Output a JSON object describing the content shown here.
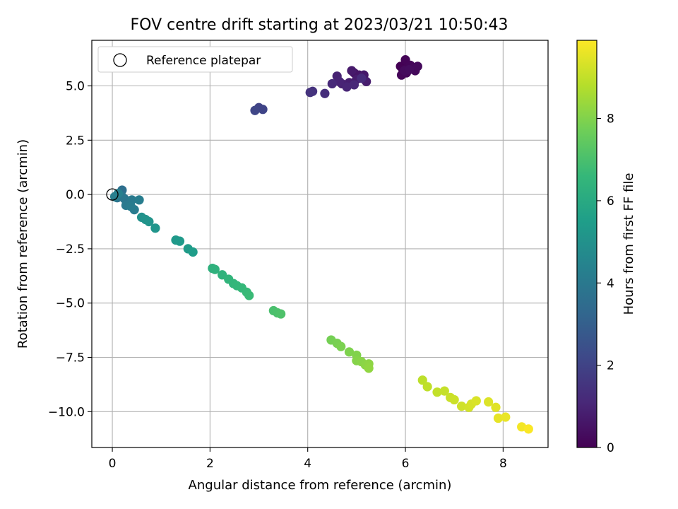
{
  "chart_data": {
    "type": "scatter",
    "title": "FOV centre drift starting at 2023/03/21 10:50:43",
    "xlabel": "Angular distance from reference (arcmin)",
    "ylabel": "Rotation from reference (arcmin)",
    "xlim": [
      -0.42,
      8.92
    ],
    "ylim": [
      -11.65,
      7.1
    ],
    "xticks": [
      0,
      2,
      4,
      6,
      8
    ],
    "xtick_labels": [
      "0",
      "2",
      "4",
      "6",
      "8"
    ],
    "yticks": [
      -10,
      -7.5,
      -5,
      -2.5,
      0,
      2.5,
      5
    ],
    "ytick_labels": [
      "−10.0",
      "−7.5",
      "−5.0",
      "−2.5",
      "0.0",
      "2.5",
      "5.0"
    ],
    "grid": true,
    "legend": {
      "placement": "top-left",
      "entries": [
        "Reference platepar"
      ]
    },
    "reference_point": {
      "x": 0,
      "y": 0
    },
    "colorbar": {
      "label": "Hours from first FF file",
      "colormap": "viridis",
      "range": [
        0,
        9.9
      ],
      "ticks": [
        0,
        2,
        4,
        6,
        8
      ],
      "tick_labels": [
        "0",
        "2",
        "4",
        "6",
        "8"
      ]
    },
    "colormap_stops": [
      "#440154",
      "#482878",
      "#3e4989",
      "#31688e",
      "#26828e",
      "#1f9e89",
      "#35b779",
      "#6ece58",
      "#b5de2b",
      "#fde725"
    ],
    "points": [
      {
        "x": 5.9,
        "y": 5.9,
        "h": 0.0
      },
      {
        "x": 5.95,
        "y": 5.75,
        "h": 0.05
      },
      {
        "x": 6.0,
        "y": 6.2,
        "h": 0.08
      },
      {
        "x": 6.05,
        "y": 5.85,
        "h": 0.1
      },
      {
        "x": 6.1,
        "y": 5.95,
        "h": 0.12
      },
      {
        "x": 5.92,
        "y": 5.5,
        "h": 0.15
      },
      {
        "x": 6.02,
        "y": 5.6,
        "h": 0.18
      },
      {
        "x": 6.15,
        "y": 5.8,
        "h": 0.2
      },
      {
        "x": 6.2,
        "y": 5.7,
        "h": 0.22
      },
      {
        "x": 6.25,
        "y": 5.9,
        "h": 0.25
      },
      {
        "x": 5.98,
        "y": 5.7,
        "h": 0.28
      },
      {
        "x": 6.08,
        "y": 5.75,
        "h": 0.3
      },
      {
        "x": 4.95,
        "y": 5.6,
        "h": 0.5
      },
      {
        "x": 5.05,
        "y": 5.5,
        "h": 0.55
      },
      {
        "x": 5.1,
        "y": 5.45,
        "h": 0.6
      },
      {
        "x": 5.15,
        "y": 5.5,
        "h": 0.65
      },
      {
        "x": 4.9,
        "y": 5.7,
        "h": 0.7
      },
      {
        "x": 5.0,
        "y": 5.3,
        "h": 0.75
      },
      {
        "x": 5.2,
        "y": 5.2,
        "h": 0.8
      },
      {
        "x": 4.85,
        "y": 5.15,
        "h": 0.85
      },
      {
        "x": 4.7,
        "y": 5.1,
        "h": 0.9
      },
      {
        "x": 4.6,
        "y": 5.45,
        "h": 0.95
      },
      {
        "x": 4.65,
        "y": 5.2,
        "h": 1.0
      },
      {
        "x": 4.8,
        "y": 4.95,
        "h": 1.05
      },
      {
        "x": 4.95,
        "y": 5.05,
        "h": 1.1
      },
      {
        "x": 4.5,
        "y": 5.1,
        "h": 1.15
      },
      {
        "x": 5.1,
        "y": 5.35,
        "h": 1.2
      },
      {
        "x": 4.35,
        "y": 4.65,
        "h": 1.3
      },
      {
        "x": 4.1,
        "y": 4.75,
        "h": 1.4
      },
      {
        "x": 4.05,
        "y": 4.7,
        "h": 1.45
      },
      {
        "x": 3.0,
        "y": 4.0,
        "h": 2.0
      },
      {
        "x": 3.08,
        "y": 3.92,
        "h": 2.05
      },
      {
        "x": 2.92,
        "y": 3.87,
        "h": 2.1
      },
      {
        "x": 0.2,
        "y": 0.2,
        "h": 3.6
      },
      {
        "x": 0.15,
        "y": -0.05,
        "h": 3.7
      },
      {
        "x": 0.1,
        "y": -0.15,
        "h": 3.75
      },
      {
        "x": 0.25,
        "y": -0.2,
        "h": 3.8
      },
      {
        "x": 0.3,
        "y": -0.35,
        "h": 3.85
      },
      {
        "x": 0.35,
        "y": -0.3,
        "h": 3.9
      },
      {
        "x": 0.2,
        "y": -0.1,
        "h": 3.95
      },
      {
        "x": 0.28,
        "y": -0.5,
        "h": 4.0
      },
      {
        "x": 0.4,
        "y": -0.25,
        "h": 4.05
      },
      {
        "x": 0.45,
        "y": -0.7,
        "h": 4.1
      },
      {
        "x": 0.38,
        "y": -0.55,
        "h": 4.15
      },
      {
        "x": 0.55,
        "y": -0.25,
        "h": 4.2
      },
      {
        "x": 0.05,
        "y": -0.1,
        "h": 4.25
      },
      {
        "x": 0.12,
        "y": 0.05,
        "h": 4.3
      },
      {
        "x": 0.6,
        "y": -1.05,
        "h": 5.0
      },
      {
        "x": 0.68,
        "y": -1.15,
        "h": 5.05
      },
      {
        "x": 0.75,
        "y": -1.25,
        "h": 5.1
      },
      {
        "x": 0.88,
        "y": -1.55,
        "h": 5.15
      },
      {
        "x": 1.3,
        "y": -2.1,
        "h": 5.3
      },
      {
        "x": 1.38,
        "y": -2.15,
        "h": 5.35
      },
      {
        "x": 1.55,
        "y": -2.5,
        "h": 5.4
      },
      {
        "x": 1.65,
        "y": -2.65,
        "h": 5.45
      },
      {
        "x": 2.05,
        "y": -3.4,
        "h": 6.3
      },
      {
        "x": 2.1,
        "y": -3.45,
        "h": 6.35
      },
      {
        "x": 2.25,
        "y": -3.7,
        "h": 6.4
      },
      {
        "x": 2.38,
        "y": -3.9,
        "h": 6.45
      },
      {
        "x": 2.48,
        "y": -4.1,
        "h": 6.5
      },
      {
        "x": 2.55,
        "y": -4.2,
        "h": 6.55
      },
      {
        "x": 2.65,
        "y": -4.3,
        "h": 6.6
      },
      {
        "x": 2.75,
        "y": -4.5,
        "h": 6.65
      },
      {
        "x": 2.8,
        "y": -4.65,
        "h": 6.7
      },
      {
        "x": 3.3,
        "y": -5.35,
        "h": 7.0
      },
      {
        "x": 3.38,
        "y": -5.45,
        "h": 7.05
      },
      {
        "x": 3.45,
        "y": -5.5,
        "h": 7.1
      },
      {
        "x": 4.48,
        "y": -6.7,
        "h": 7.8
      },
      {
        "x": 4.6,
        "y": -6.85,
        "h": 7.85
      },
      {
        "x": 4.68,
        "y": -7.0,
        "h": 7.9
      },
      {
        "x": 4.85,
        "y": -7.25,
        "h": 7.95
      },
      {
        "x": 5.0,
        "y": -7.4,
        "h": 8.0
      },
      {
        "x": 5.0,
        "y": -7.65,
        "h": 8.05
      },
      {
        "x": 5.1,
        "y": -7.7,
        "h": 8.1
      },
      {
        "x": 5.18,
        "y": -7.85,
        "h": 8.15
      },
      {
        "x": 5.25,
        "y": -7.8,
        "h": 8.2
      },
      {
        "x": 5.25,
        "y": -8.0,
        "h": 8.25
      },
      {
        "x": 6.35,
        "y": -8.55,
        "h": 8.9
      },
      {
        "x": 6.45,
        "y": -8.85,
        "h": 8.95
      },
      {
        "x": 6.65,
        "y": -9.1,
        "h": 9.0
      },
      {
        "x": 6.8,
        "y": -9.05,
        "h": 9.05
      },
      {
        "x": 6.92,
        "y": -9.35,
        "h": 9.1
      },
      {
        "x": 7.0,
        "y": -9.45,
        "h": 9.15
      },
      {
        "x": 7.15,
        "y": -9.75,
        "h": 9.2
      },
      {
        "x": 7.3,
        "y": -9.8,
        "h": 9.25
      },
      {
        "x": 7.35,
        "y": -9.65,
        "h": 9.3
      },
      {
        "x": 7.45,
        "y": -9.5,
        "h": 9.35
      },
      {
        "x": 7.7,
        "y": -9.55,
        "h": 9.4
      },
      {
        "x": 7.85,
        "y": -9.8,
        "h": 9.45
      },
      {
        "x": 7.9,
        "y": -10.3,
        "h": 9.55
      },
      {
        "x": 8.05,
        "y": -10.25,
        "h": 9.6
      },
      {
        "x": 8.38,
        "y": -10.7,
        "h": 9.75
      },
      {
        "x": 8.52,
        "y": -10.8,
        "h": 9.85
      }
    ]
  }
}
